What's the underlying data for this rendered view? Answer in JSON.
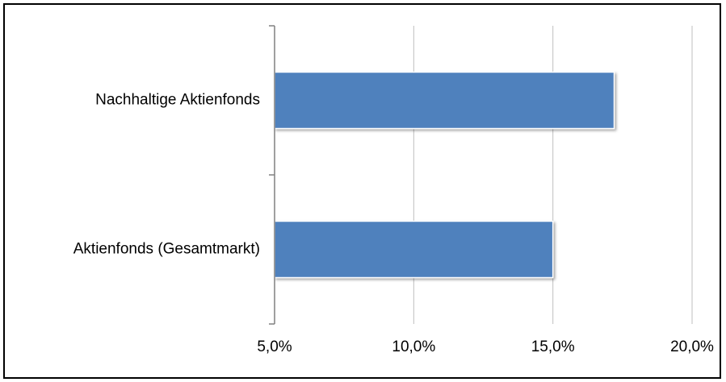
{
  "chart_data": {
    "type": "bar",
    "orientation": "horizontal",
    "categories": [
      "Nachhaltige Aktienfonds",
      "Aktienfonds (Gesamtmarkt)"
    ],
    "values": [
      17.2,
      15.0
    ],
    "unit": "%",
    "xlim": [
      5,
      20
    ],
    "xticks": [
      5,
      10,
      15,
      20
    ],
    "xtick_labels": [
      "5,0%",
      "10,0%",
      "15,0%",
      "20,0%"
    ],
    "grid": "vertical",
    "legend": "none",
    "title": "",
    "xlabel": "",
    "ylabel": "",
    "colors": {
      "bar": "#4f81bd",
      "bar_edge": "#ffffff",
      "grid": "#bfbfbf",
      "axis": "#808080",
      "frame": "#000000"
    }
  }
}
